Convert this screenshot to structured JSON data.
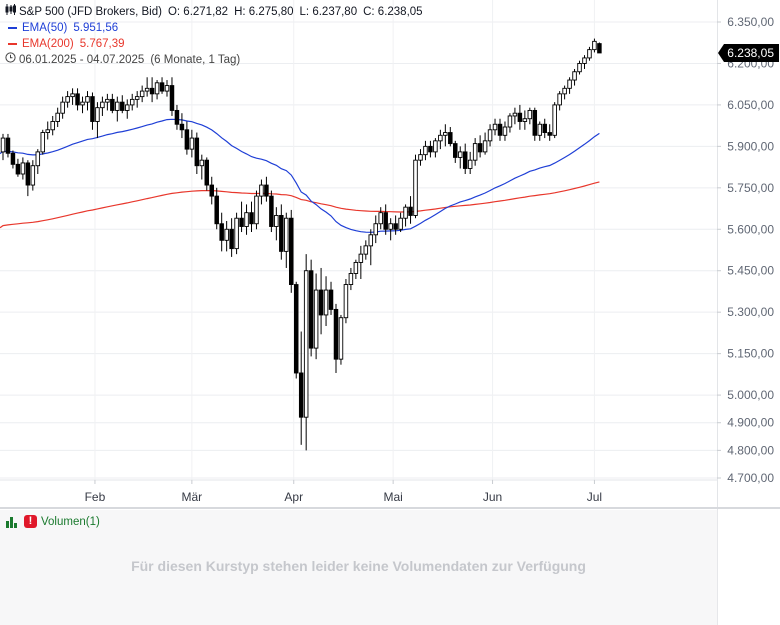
{
  "legend": {
    "symbol": "S&P 500 (JFD Brokers, Bid)",
    "open_label": "O:",
    "open": "6.271,82",
    "high_label": "H:",
    "high": "6.275,80",
    "low_label": "L:",
    "low": "6.237,80",
    "close_label": "C:",
    "close": "6.238,05",
    "ema50_label": "EMA(50)",
    "ema50_value": "5.951,56",
    "ema50_color": "#1f3fd6",
    "ema200_label": "EMA(200)",
    "ema200_value": "5.767,39",
    "ema200_color": "#e8372c",
    "range": "06.01.2025 - 04.07.2025",
    "range_detail": "(6 Monate, 1 Tag)"
  },
  "price_label": "6.238,05",
  "volume": {
    "label": "Volumen(1)",
    "message": "Für diesen Kurstyp stehen leider keine Volumendaten zur Verfügung"
  },
  "chart_data": {
    "type": "candlestick",
    "title": "S&P 500 (JFD Brokers, Bid)",
    "ylim": [
      4650,
      6420
    ],
    "yticks": [
      {
        "v": 6350,
        "label": "6.350,00"
      },
      {
        "v": 6200,
        "label": "6.200,00"
      },
      {
        "v": 6050,
        "label": "6.050,00"
      },
      {
        "v": 5900,
        "label": "5.900,00"
      },
      {
        "v": 5750,
        "label": "5.750,00"
      },
      {
        "v": 5600,
        "label": "5.600,00"
      },
      {
        "v": 5450,
        "label": "5.450,00"
      },
      {
        "v": 5300,
        "label": "5.300,00"
      },
      {
        "v": 5150,
        "label": "5.150,00"
      },
      {
        "v": 5000,
        "label": "5.000,00"
      },
      {
        "v": 4900,
        "label": "4.900,00"
      },
      {
        "v": 4800,
        "label": "4.800,00"
      },
      {
        "v": 4700,
        "label": "4.700,00"
      }
    ],
    "months": [
      {
        "label": "Feb",
        "idx": 18.5
      },
      {
        "label": "Mär",
        "idx": 38
      },
      {
        "label": "Apr",
        "idx": 58.5
      },
      {
        "label": "Mai",
        "idx": 78.5
      },
      {
        "label": "Jun",
        "idx": 98.5
      },
      {
        "label": "Jul",
        "idx": 119
      }
    ],
    "candles": [
      [
        5880,
        5945,
        5850,
        5930
      ],
      [
        5930,
        5945,
        5860,
        5875
      ],
      [
        5875,
        5885,
        5820,
        5835
      ],
      [
        5835,
        5855,
        5790,
        5800
      ],
      [
        5800,
        5860,
        5780,
        5840
      ],
      [
        5840,
        5850,
        5720,
        5760
      ],
      [
        5760,
        5850,
        5740,
        5830
      ],
      [
        5830,
        5890,
        5800,
        5880
      ],
      [
        5880,
        5960,
        5870,
        5950
      ],
      [
        5950,
        5990,
        5925,
        5960
      ],
      [
        5960,
        6010,
        5940,
        5990
      ],
      [
        5990,
        6040,
        5970,
        6020
      ],
      [
        6020,
        6080,
        6000,
        6060
      ],
      [
        6060,
        6100,
        6040,
        6080
      ],
      [
        6080,
        6110,
        6050,
        6090
      ],
      [
        6090,
        6110,
        6030,
        6050
      ],
      [
        6050,
        6080,
        6020,
        6060
      ],
      [
        6060,
        6100,
        6030,
        6080
      ],
      [
        6080,
        6095,
        5960,
        5990
      ],
      [
        5990,
        6060,
        5930,
        6040
      ],
      [
        6040,
        6080,
        6010,
        6060
      ],
      [
        6060,
        6090,
        6030,
        6070
      ],
      [
        6070,
        6090,
        6020,
        6030
      ],
      [
        6030,
        6080,
        5990,
        6060
      ],
      [
        6060,
        6085,
        6020,
        6030
      ],
      [
        6030,
        6070,
        6000,
        6050
      ],
      [
        6050,
        6090,
        6030,
        6070
      ],
      [
        6070,
        6100,
        6040,
        6080
      ],
      [
        6080,
        6120,
        6060,
        6100
      ],
      [
        6100,
        6150,
        6080,
        6110
      ],
      [
        6110,
        6150,
        6060,
        6090
      ],
      [
        6090,
        6140,
        6070,
        6130
      ],
      [
        6130,
        6150,
        6090,
        6100
      ],
      [
        6100,
        6140,
        6080,
        6120
      ],
      [
        6120,
        6150,
        6010,
        6030
      ],
      [
        6030,
        6050,
        5960,
        5980
      ],
      [
        5980,
        6020,
        5930,
        5960
      ],
      [
        5960,
        5990,
        5870,
        5890
      ],
      [
        5890,
        5960,
        5860,
        5930
      ],
      [
        5930,
        5950,
        5800,
        5830
      ],
      [
        5830,
        5870,
        5780,
        5850
      ],
      [
        5850,
        5860,
        5740,
        5760
      ],
      [
        5760,
        5790,
        5690,
        5720
      ],
      [
        5720,
        5750,
        5600,
        5620
      ],
      [
        5620,
        5660,
        5520,
        5560
      ],
      [
        5560,
        5630,
        5520,
        5600
      ],
      [
        5600,
        5640,
        5500,
        5530
      ],
      [
        5530,
        5660,
        5510,
        5640
      ],
      [
        5640,
        5700,
        5590,
        5610
      ],
      [
        5610,
        5690,
        5580,
        5660
      ],
      [
        5660,
        5700,
        5590,
        5620
      ],
      [
        5620,
        5740,
        5600,
        5720
      ],
      [
        5720,
        5780,
        5690,
        5760
      ],
      [
        5760,
        5790,
        5700,
        5720
      ],
      [
        5720,
        5740,
        5590,
        5610
      ],
      [
        5610,
        5680,
        5560,
        5650
      ],
      [
        5650,
        5690,
        5490,
        5520
      ],
      [
        5520,
        5660,
        5460,
        5640
      ],
      [
        5640,
        5670,
        5370,
        5400
      ],
      [
        5400,
        5410,
        5060,
        5080
      ],
      [
        5080,
        5230,
        4820,
        4920
      ],
      [
        4920,
        5510,
        4800,
        5450
      ],
      [
        5450,
        5490,
        5140,
        5170
      ],
      [
        5170,
        5440,
        5130,
        5380
      ],
      [
        5380,
        5460,
        5220,
        5290
      ],
      [
        5290,
        5430,
        5250,
        5380
      ],
      [
        5380,
        5410,
        5290,
        5310
      ],
      [
        5310,
        5330,
        5080,
        5130
      ],
      [
        5130,
        5290,
        5110,
        5280
      ],
      [
        5280,
        5420,
        5260,
        5400
      ],
      [
        5400,
        5460,
        5380,
        5440
      ],
      [
        5440,
        5490,
        5420,
        5480
      ],
      [
        5480,
        5540,
        5420,
        5510
      ],
      [
        5510,
        5560,
        5490,
        5540
      ],
      [
        5540,
        5600,
        5470,
        5580
      ],
      [
        5580,
        5650,
        5550,
        5620
      ],
      [
        5620,
        5680,
        5600,
        5660
      ],
      [
        5660,
        5690,
        5580,
        5600
      ],
      [
        5600,
        5640,
        5560,
        5620
      ],
      [
        5620,
        5650,
        5580,
        5600
      ],
      [
        5600,
        5660,
        5590,
        5640
      ],
      [
        5640,
        5690,
        5610,
        5680
      ],
      [
        5680,
        5720,
        5620,
        5650
      ],
      [
        5650,
        5870,
        5640,
        5850
      ],
      [
        5850,
        5890,
        5830,
        5870
      ],
      [
        5870,
        5920,
        5850,
        5900
      ],
      [
        5900,
        5920,
        5860,
        5880
      ],
      [
        5880,
        5930,
        5860,
        5920
      ],
      [
        5920,
        5960,
        5890,
        5940
      ],
      [
        5940,
        5980,
        5900,
        5950
      ],
      [
        5950,
        5970,
        5900,
        5910
      ],
      [
        5910,
        5920,
        5840,
        5860
      ],
      [
        5860,
        5900,
        5820,
        5880
      ],
      [
        5880,
        5910,
        5800,
        5820
      ],
      [
        5820,
        5880,
        5800,
        5850
      ],
      [
        5850,
        5930,
        5830,
        5910
      ],
      [
        5910,
        5940,
        5860,
        5880
      ],
      [
        5880,
        5950,
        5870,
        5920
      ],
      [
        5920,
        5980,
        5900,
        5960
      ],
      [
        5960,
        6000,
        5940,
        5980
      ],
      [
        5980,
        6000,
        5920,
        5940
      ],
      [
        5940,
        5990,
        5920,
        5970
      ],
      [
        5970,
        6020,
        5950,
        6010
      ],
      [
        6010,
        6040,
        5980,
        6020
      ],
      [
        6020,
        6050,
        5960,
        5990
      ],
      [
        5990,
        6030,
        5960,
        6000
      ],
      [
        6000,
        6040,
        5980,
        6030
      ],
      [
        6030,
        6040,
        5920,
        5940
      ],
      [
        5940,
        5990,
        5920,
        5980
      ],
      [
        5980,
        6000,
        5930,
        5950
      ],
      [
        5950,
        5980,
        5920,
        5940
      ],
      [
        5940,
        6060,
        5930,
        6050
      ],
      [
        6050,
        6100,
        6030,
        6090
      ],
      [
        6090,
        6120,
        6070,
        6110
      ],
      [
        6110,
        6150,
        6090,
        6140
      ],
      [
        6140,
        6180,
        6120,
        6170
      ],
      [
        6170,
        6210,
        6160,
        6200
      ],
      [
        6200,
        6230,
        6180,
        6220
      ],
      [
        6220,
        6260,
        6210,
        6250
      ],
      [
        6250,
        6290,
        6240,
        6280
      ],
      [
        6271.82,
        6275.8,
        6237.8,
        6238.05
      ]
    ]
  }
}
